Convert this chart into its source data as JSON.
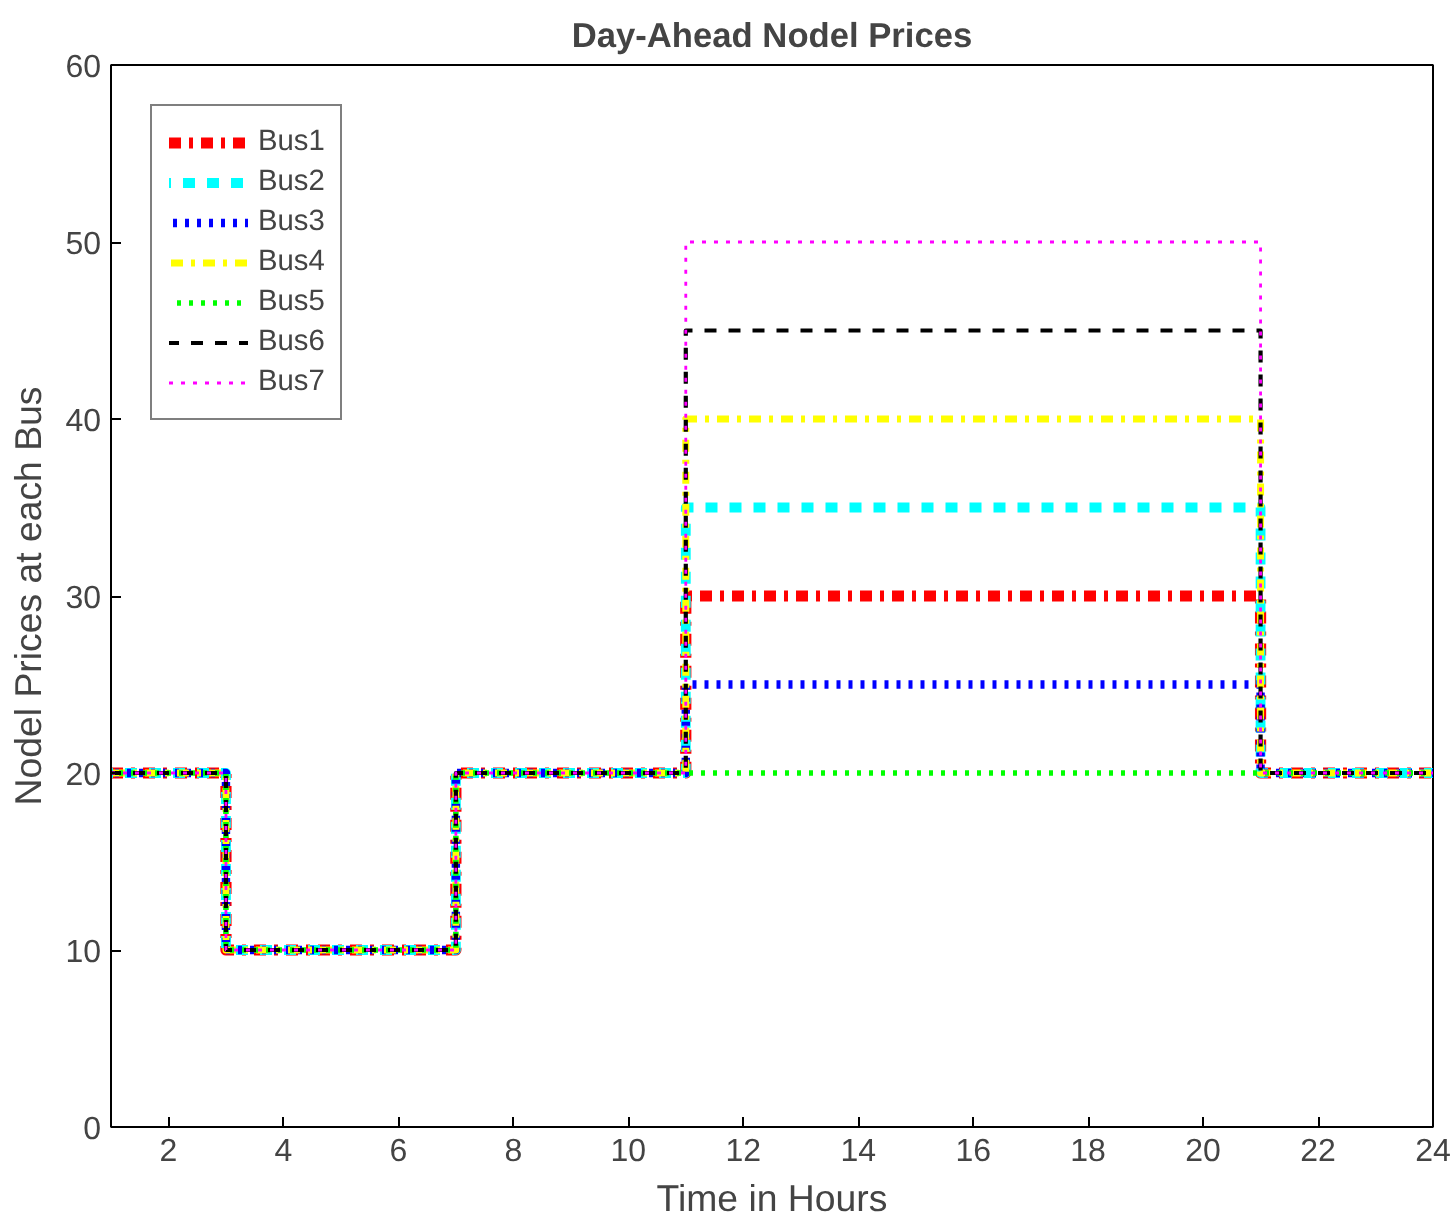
{
  "chart_data": {
    "type": "step",
    "title": "Day-Ahead Nodel Prices",
    "xlabel": "Time in Hours",
    "ylabel": "Nodel Prices at each Bus",
    "x": [
      1,
      2,
      3,
      4,
      5,
      6,
      7,
      8,
      9,
      10,
      11,
      12,
      13,
      14,
      15,
      16,
      17,
      18,
      19,
      20,
      21,
      22,
      23,
      24
    ],
    "series": [
      {
        "name": "Bus1",
        "color": "#ff0000",
        "line_style": "dashdot",
        "values": [
          20,
          20,
          10,
          10,
          10,
          10,
          20,
          20,
          20,
          20,
          30,
          30,
          30,
          30,
          30,
          30,
          30,
          30,
          30,
          30,
          20,
          20,
          20,
          20
        ]
      },
      {
        "name": "Bus2",
        "color": "#00ffff",
        "line_style": "dashed",
        "values": [
          20,
          20,
          10,
          10,
          10,
          10,
          20,
          20,
          20,
          20,
          35,
          35,
          35,
          35,
          35,
          35,
          35,
          35,
          35,
          35,
          20,
          20,
          20,
          20
        ]
      },
      {
        "name": "Bus3",
        "color": "#0000ff",
        "line_style": "dotted",
        "values": [
          20,
          20,
          10,
          10,
          10,
          10,
          20,
          20,
          20,
          20,
          25,
          25,
          25,
          25,
          25,
          25,
          25,
          25,
          25,
          25,
          20,
          20,
          20,
          20
        ]
      },
      {
        "name": "Bus4",
        "color": "#ffff00",
        "line_style": "dashdot",
        "values": [
          20,
          20,
          10,
          10,
          10,
          10,
          20,
          20,
          20,
          20,
          40,
          40,
          40,
          40,
          40,
          40,
          40,
          40,
          40,
          40,
          20,
          20,
          20,
          20
        ]
      },
      {
        "name": "Bus5",
        "color": "#00ff00",
        "line_style": "dotted",
        "values": [
          20,
          20,
          10,
          10,
          10,
          10,
          20,
          20,
          20,
          20,
          20,
          20,
          20,
          20,
          20,
          20,
          20,
          20,
          20,
          20,
          20,
          20,
          20,
          20
        ]
      },
      {
        "name": "Bus6",
        "color": "#000000",
        "line_style": "dashed",
        "values": [
          20,
          20,
          10,
          10,
          10,
          10,
          20,
          20,
          20,
          20,
          45,
          45,
          45,
          45,
          45,
          45,
          45,
          45,
          45,
          45,
          20,
          20,
          20,
          20
        ]
      },
      {
        "name": "Bus7",
        "color": "#ff00ff",
        "line_style": "dotted",
        "values": [
          20,
          20,
          10,
          10,
          10,
          10,
          20,
          20,
          20,
          20,
          50,
          50,
          50,
          50,
          50,
          50,
          50,
          50,
          50,
          50,
          20,
          20,
          20,
          20
        ]
      }
    ],
    "xlim": [
      1,
      24
    ],
    "ylim": [
      0,
      60
    ],
    "xticks": [
      2,
      4,
      6,
      8,
      10,
      12,
      14,
      16,
      18,
      20,
      22,
      24
    ],
    "yticks": [
      0,
      10,
      20,
      30,
      40,
      50,
      60
    ],
    "legend": "top left",
    "grid": false
  }
}
